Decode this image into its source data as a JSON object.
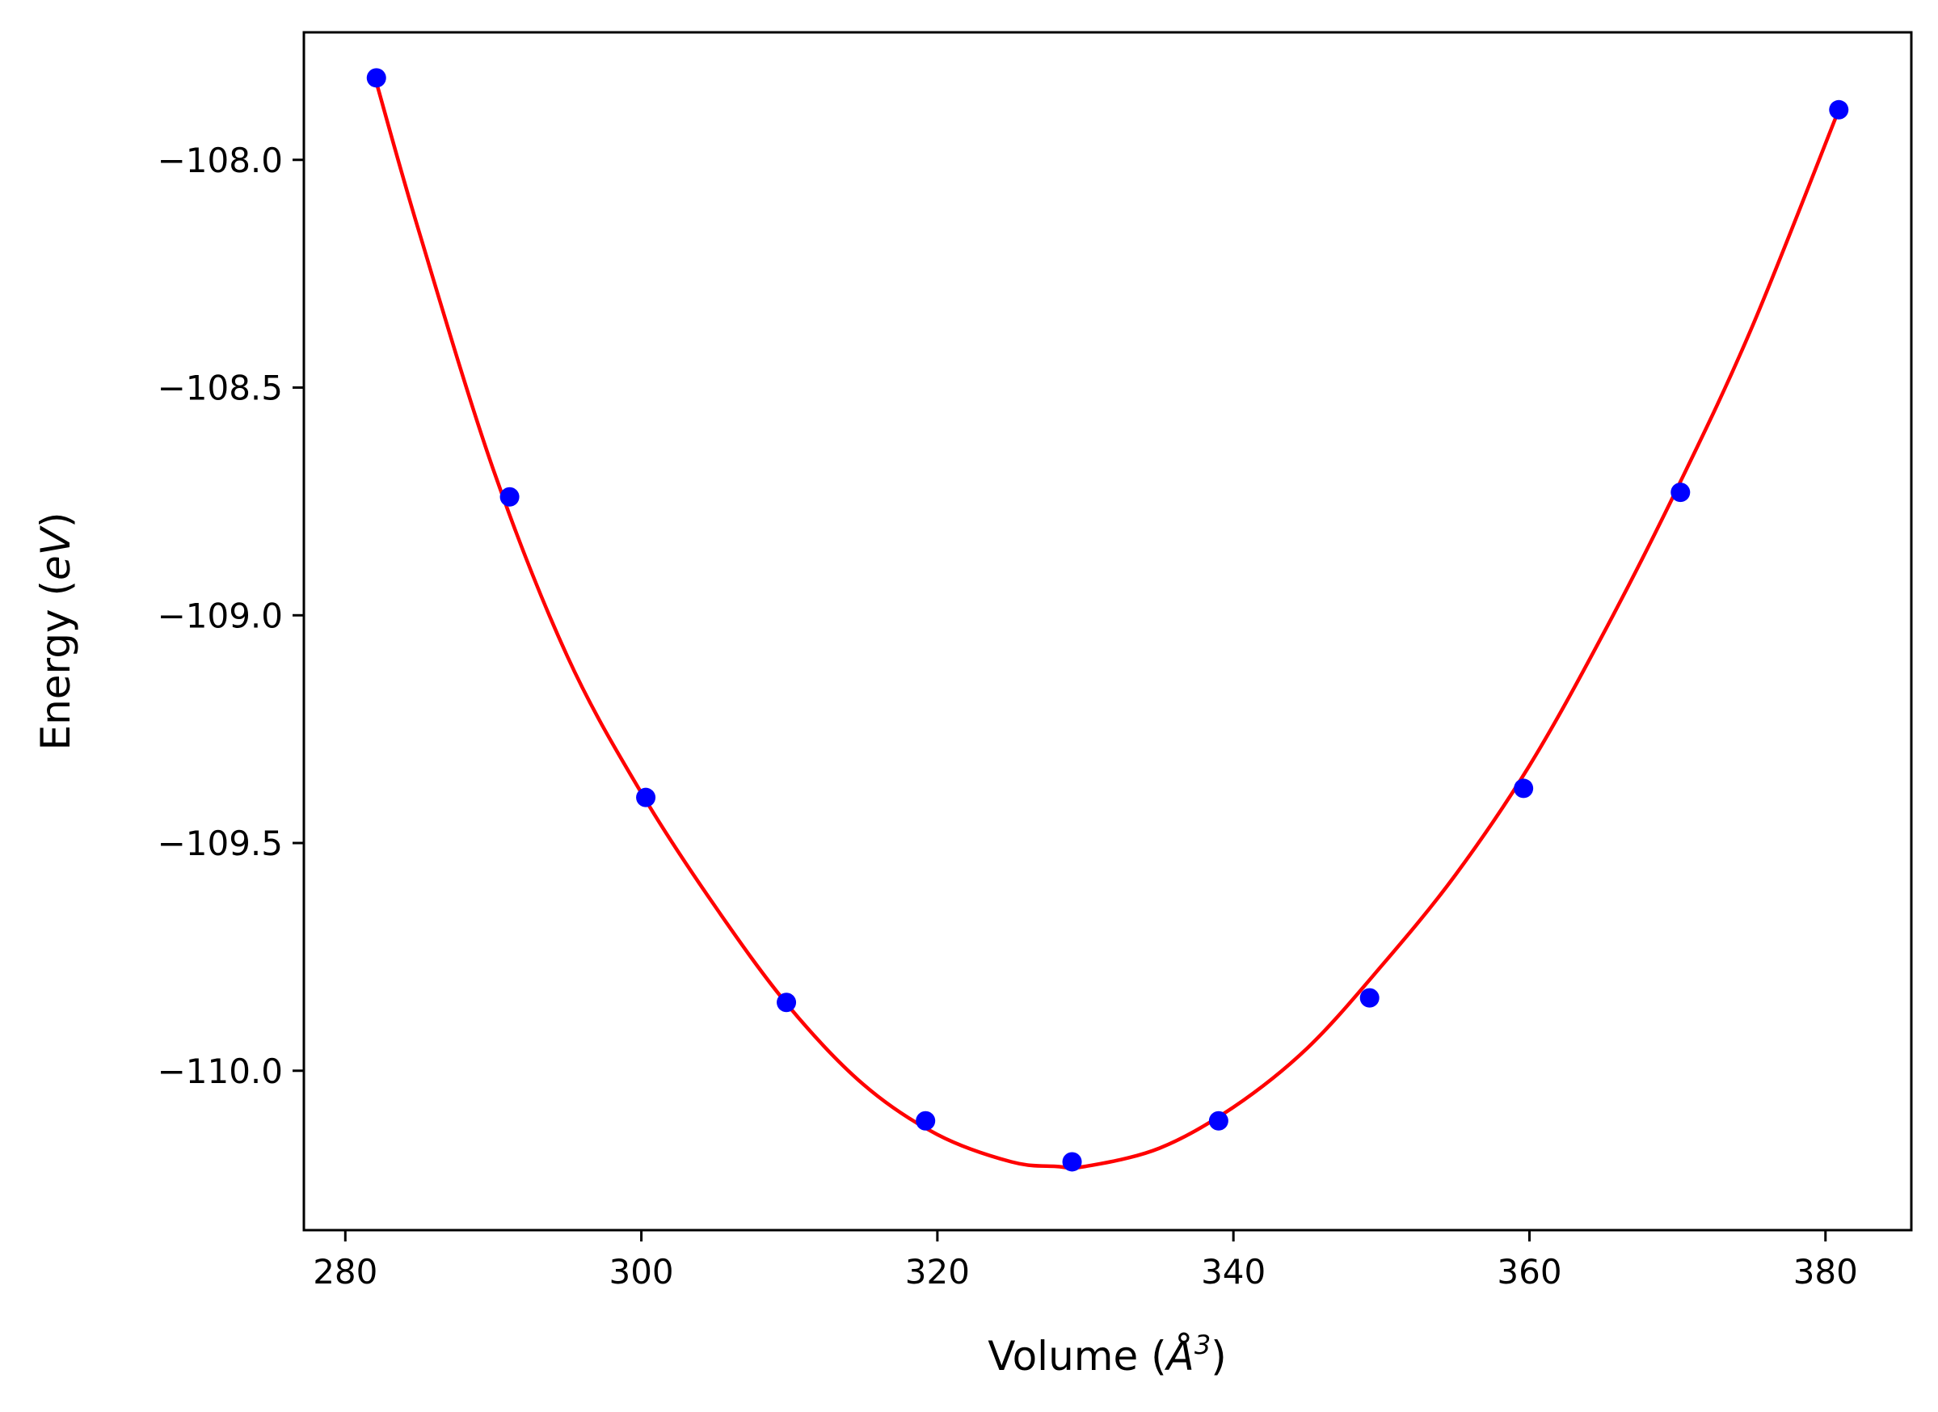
{
  "chart_data": {
    "type": "scatter",
    "title": "",
    "xlabel": "Volume",
    "xlabel_unit": "Å",
    "xlabel_unit_power": "3",
    "ylabel": "Energy",
    "ylabel_unit": "eV",
    "xlim": [
      277.2,
      385.8
    ],
    "ylim": [
      -110.35,
      -107.72
    ],
    "x_ticks": [
      280,
      300,
      320,
      340,
      360,
      380
    ],
    "x_tick_labels": [
      "280",
      "300",
      "320",
      "340",
      "360",
      "380"
    ],
    "y_ticks": [
      -108.0,
      -108.5,
      -109.0,
      -109.5,
      -110.0
    ],
    "y_tick_labels": [
      "−108.0",
      "−108.5",
      "−109.0",
      "−109.5",
      "−110.0"
    ],
    "grid": false,
    "series": [
      {
        "kind": "points",
        "color": "#0000ff",
        "x": [
          282.1,
          291.1,
          300.3,
          309.8,
          319.2,
          329.1,
          339.0,
          349.2,
          359.6,
          370.2,
          380.9
        ],
        "y": [
          -107.82,
          -108.74,
          -109.4,
          -109.85,
          -110.11,
          -110.2,
          -110.11,
          -109.84,
          -109.38,
          -108.73,
          -107.89
        ]
      },
      {
        "kind": "fit-curve",
        "color": "#ff0000",
        "x": [
          282.1,
          285,
          290,
          295,
          300,
          305,
          310,
          315,
          320,
          325,
          328,
          330,
          335,
          340,
          345,
          350,
          355,
          360,
          365,
          370,
          375,
          380.9
        ],
        "y": [
          -107.83,
          -108.16,
          -108.68,
          -109.09,
          -109.39,
          -109.64,
          -109.86,
          -110.03,
          -110.14,
          -110.2,
          -110.21,
          -110.21,
          -110.17,
          -110.08,
          -109.95,
          -109.77,
          -109.57,
          -109.33,
          -109.04,
          -108.72,
          -108.37,
          -107.89
        ]
      }
    ]
  }
}
